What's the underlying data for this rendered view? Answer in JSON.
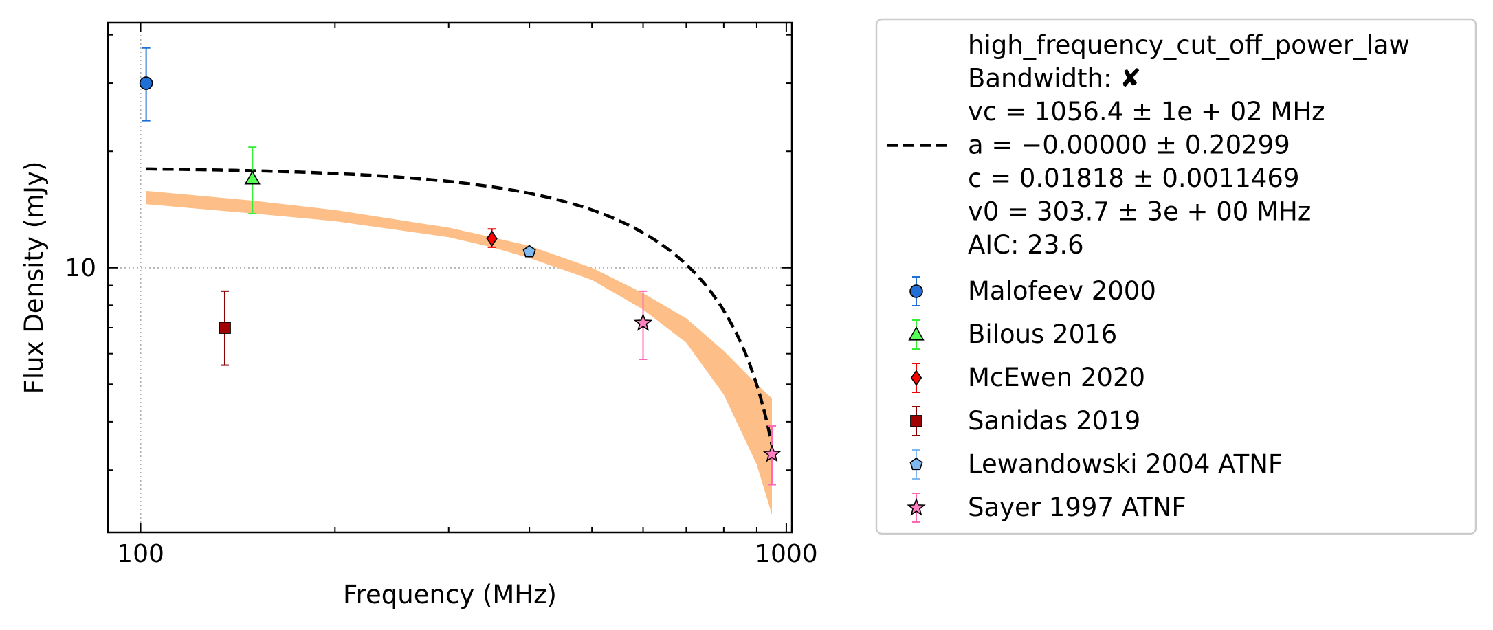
{
  "chart_data": {
    "type": "scatter",
    "x_scale": "log",
    "y_scale": "log",
    "xlim": [
      89,
      1020
    ],
    "ylim": [
      2.07,
      43.0
    ],
    "xlabel": "Frequency (MHz)",
    "ylabel": "Flux Density (mJy)",
    "x_ticks": [
      {
        "value": 100,
        "label": "100"
      },
      {
        "value": 1000,
        "label": "1000"
      }
    ],
    "y_ticks": [
      {
        "value": 10,
        "label": "10"
      }
    ],
    "reference_lines": {
      "x": 100,
      "y": 10
    },
    "grid": false,
    "legend_position": "outside-right",
    "fit": {
      "name": "high_frequency_cut_off_power_law",
      "legend_lines": [
        "high_frequency_cut_off_power_law",
        "Bandwidth: ✘",
        "vc = 1056.4 ± 1e + 02 MHz",
        "a = −0.00000 ± 0.20299",
        "c = 0.01818 ± 0.0011469",
        "v0 = 303.7 ± 3e + 00 MHz",
        "AIC: 23.6"
      ],
      "vc": 1056.4,
      "a": 0.0,
      "c": 0.01818,
      "v0": 303.7,
      "x_range": [
        102,
        950
      ],
      "line_color": "#000000",
      "band_color": "#fdbf87",
      "band": {
        "x": [
          102,
          150,
          200,
          300,
          350,
          400,
          500,
          600,
          700,
          800,
          900,
          950
        ],
        "lower": [
          14.6,
          13.8,
          13.2,
          12.0,
          11.3,
          10.6,
          9.3,
          7.8,
          6.4,
          4.7,
          3.1,
          2.3
        ],
        "upper": [
          15.8,
          14.9,
          14.1,
          12.7,
          12.0,
          11.4,
          10.0,
          8.6,
          7.4,
          6.1,
          5.0,
          4.6
        ]
      }
    },
    "series": [
      {
        "name": "Malofeev 2000",
        "marker": "circle",
        "color": "#1f6fd6",
        "ecolor": "#1f6fd6",
        "points": [
          {
            "x": 102,
            "y": 30.0,
            "yerr_low": 24.0,
            "yerr_high": 37.0
          }
        ]
      },
      {
        "name": "Bilous 2016",
        "marker": "triangle",
        "color": "#55ff55",
        "ecolor": "#33ee33",
        "points": [
          {
            "x": 149,
            "y": 17.0,
            "yerr_low": 13.8,
            "yerr_high": 20.5
          }
        ]
      },
      {
        "name": "McEwen 2020",
        "marker": "diamond",
        "color": "#ff0000",
        "ecolor": "#ee0000",
        "points": [
          {
            "x": 350,
            "y": 11.9,
            "yerr_low": 11.3,
            "yerr_high": 12.6
          }
        ]
      },
      {
        "name": "Sanidas 2019",
        "marker": "square",
        "color": "#a00000",
        "ecolor": "#8b0000",
        "points": [
          {
            "x": 135,
            "y": 7.0,
            "yerr_low": 5.6,
            "yerr_high": 8.7
          }
        ]
      },
      {
        "name": "Lewandowski 2004 ATNF",
        "marker": "pentagon",
        "color": "#80b8f0",
        "ecolor": "#80b8f0",
        "points": [
          {
            "x": 400,
            "y": 11.0,
            "yerr_low": 10.7,
            "yerr_high": 11.3
          }
        ]
      },
      {
        "name": "Sayer 1997 ATNF",
        "marker": "star",
        "color": "#ff80c0",
        "ecolor": "#ff69b4",
        "points": [
          {
            "x": 600,
            "y": 7.2,
            "yerr_low": 5.8,
            "yerr_high": 8.7
          },
          {
            "x": 950,
            "y": 3.3,
            "yerr_low": 2.75,
            "yerr_high": 3.9
          }
        ]
      }
    ]
  }
}
